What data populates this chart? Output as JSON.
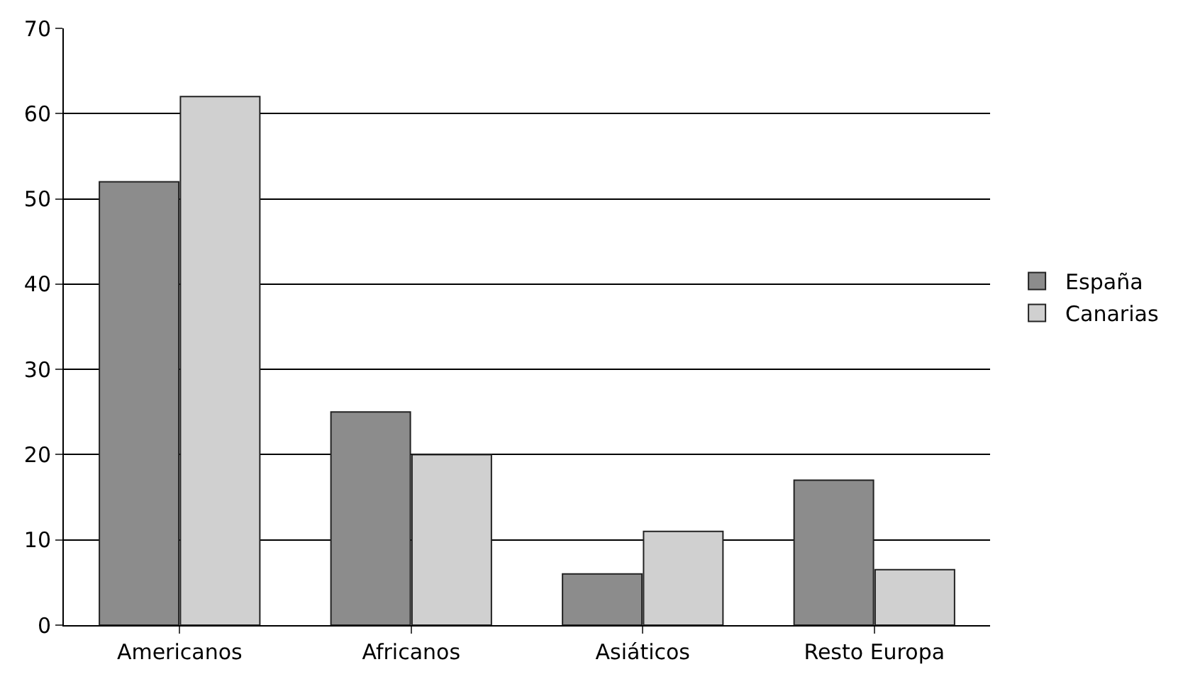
{
  "chart_data": {
    "type": "bar",
    "categories": [
      "Americanos",
      "Africanos",
      "Asiáticos",
      "Resto Europa"
    ],
    "series": [
      {
        "name": "España",
        "color": "#8c8c8c",
        "values": [
          52,
          25,
          6,
          17
        ]
      },
      {
        "name": "Canarias",
        "color": "#d0d0d0",
        "values": [
          62,
          20,
          11,
          6.5
        ]
      }
    ],
    "ylim": [
      0,
      70
    ],
    "yticks": [
      0,
      10,
      20,
      30,
      40,
      50,
      60,
      70
    ],
    "grid": "y",
    "legend": "right"
  }
}
